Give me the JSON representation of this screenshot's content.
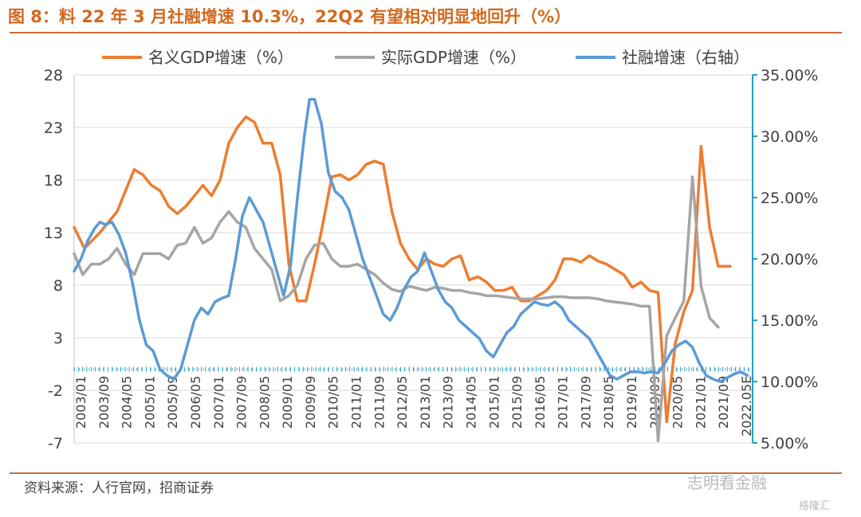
{
  "figure_title": "图 8：料 22 年 3 月社融增速 10.3%，22Q2 有望相对明显地回升（%）",
  "source": "资料来源：人行官网，招商证券",
  "watermark": "志明看金融",
  "watermark2": "格隆汇",
  "colors": {
    "nominal": "#ed7d31",
    "real": "#a5a5a5",
    "tsf": "#5b9bd5",
    "right_axis": "#1ea0c8",
    "title": "#d2691e"
  },
  "chart_data": {
    "type": "line",
    "legend": [
      "名义GDP增速（%）",
      "实际GDP增速（%）",
      "社融增速（右轴）"
    ],
    "legend_position": "top",
    "grid": true,
    "left_axis": {
      "ticks": [
        "28",
        "23",
        "18",
        "13",
        "8",
        "3",
        "-2",
        "-7"
      ],
      "ylim": [
        -7,
        28
      ]
    },
    "right_axis": {
      "ticks": [
        "35.00%",
        "30.00%",
        "25.00%",
        "20.00%",
        "15.00%",
        "10.00%",
        "5.00%"
      ],
      "ylim": [
        5,
        35
      ]
    },
    "x_ticks": [
      "2003/01",
      "2003/09",
      "2004/05",
      "2005/01",
      "2005/09",
      "2006/05",
      "2007/01",
      "2007/09",
      "2008/05",
      "2009/01",
      "2009/09",
      "2010/05",
      "2011/01",
      "2011/09",
      "2012/05",
      "2013/01",
      "2013/09",
      "2014/05",
      "2015/01",
      "2015/09",
      "2016/05",
      "2017/01",
      "2017/09",
      "2018/05",
      "2019/01",
      "2019/09",
      "2020/05",
      "2021/01",
      "2021/09",
      "2022.05E"
    ],
    "series": [
      {
        "name": "名义GDP增速（%）",
        "axis": "left",
        "color": "#ed7d31",
        "points": [
          [
            2003.0,
            13.5
          ],
          [
            2003.3,
            11.5
          ],
          [
            2003.75,
            13.0
          ],
          [
            2004.25,
            15.0
          ],
          [
            2004.5,
            17.0
          ],
          [
            2004.75,
            19.0
          ],
          [
            2005.0,
            18.5
          ],
          [
            2005.25,
            17.5
          ],
          [
            2005.5,
            17.0
          ],
          [
            2005.75,
            15.5
          ],
          [
            2006.0,
            14.8
          ],
          [
            2006.25,
            15.5
          ],
          [
            2006.5,
            16.5
          ],
          [
            2006.75,
            17.5
          ],
          [
            2007.0,
            16.5
          ],
          [
            2007.25,
            18.0
          ],
          [
            2007.5,
            21.5
          ],
          [
            2007.75,
            23.0
          ],
          [
            2008.0,
            24.0
          ],
          [
            2008.25,
            23.5
          ],
          [
            2008.5,
            21.5
          ],
          [
            2008.75,
            21.5
          ],
          [
            2009.0,
            18.5
          ],
          [
            2009.25,
            10.0
          ],
          [
            2009.5,
            6.5
          ],
          [
            2009.75,
            6.5
          ],
          [
            2010.0,
            10.0
          ],
          [
            2010.25,
            14.0
          ],
          [
            2010.5,
            18.3
          ],
          [
            2010.75,
            18.5
          ],
          [
            2011.0,
            18.0
          ],
          [
            2011.25,
            18.5
          ],
          [
            2011.5,
            19.5
          ],
          [
            2011.75,
            19.8
          ],
          [
            2012.0,
            19.5
          ],
          [
            2012.25,
            15.0
          ],
          [
            2012.5,
            12.0
          ],
          [
            2012.75,
            10.5
          ],
          [
            2013.0,
            9.5
          ],
          [
            2013.25,
            10.5
          ],
          [
            2013.5,
            10.0
          ],
          [
            2013.75,
            9.8
          ],
          [
            2014.0,
            10.5
          ],
          [
            2014.25,
            10.8
          ],
          [
            2014.5,
            8.5
          ],
          [
            2014.75,
            8.8
          ],
          [
            2015.0,
            8.3
          ],
          [
            2015.25,
            7.5
          ],
          [
            2015.5,
            7.5
          ],
          [
            2015.75,
            7.8
          ],
          [
            2016.0,
            6.5
          ],
          [
            2016.25,
            6.5
          ],
          [
            2016.5,
            7.0
          ],
          [
            2016.75,
            7.5
          ],
          [
            2017.0,
            8.5
          ],
          [
            2017.25,
            10.5
          ],
          [
            2017.5,
            10.5
          ],
          [
            2017.75,
            10.2
          ],
          [
            2018.0,
            10.8
          ],
          [
            2018.25,
            10.3
          ],
          [
            2018.5,
            10.0
          ],
          [
            2018.75,
            9.5
          ],
          [
            2019.0,
            9.0
          ],
          [
            2019.25,
            7.8
          ],
          [
            2019.5,
            8.3
          ],
          [
            2019.75,
            7.5
          ],
          [
            2020.0,
            7.3
          ],
          [
            2020.25,
            -5.0
          ],
          [
            2020.5,
            2.5
          ],
          [
            2020.75,
            5.5
          ],
          [
            2021.0,
            7.5
          ],
          [
            2021.25,
            21.2
          ],
          [
            2021.5,
            13.5
          ],
          [
            2021.75,
            9.8
          ],
          [
            2022.1,
            9.8
          ]
        ]
      },
      {
        "name": "实际GDP增速（%）",
        "axis": "left",
        "color": "#a5a5a5",
        "points": [
          [
            2003.0,
            11.0
          ],
          [
            2003.25,
            9.0
          ],
          [
            2003.5,
            10.0
          ],
          [
            2003.75,
            10.0
          ],
          [
            2004.0,
            10.5
          ],
          [
            2004.25,
            11.5
          ],
          [
            2004.5,
            10.0
          ],
          [
            2004.75,
            9.0
          ],
          [
            2005.0,
            11.0
          ],
          [
            2005.25,
            11.0
          ],
          [
            2005.5,
            11.0
          ],
          [
            2005.75,
            10.5
          ],
          [
            2006.0,
            11.8
          ],
          [
            2006.25,
            12.0
          ],
          [
            2006.5,
            13.5
          ],
          [
            2006.75,
            12.0
          ],
          [
            2007.0,
            12.5
          ],
          [
            2007.25,
            14.0
          ],
          [
            2007.5,
            15.0
          ],
          [
            2007.75,
            14.0
          ],
          [
            2008.0,
            13.5
          ],
          [
            2008.25,
            11.5
          ],
          [
            2008.5,
            10.5
          ],
          [
            2008.75,
            9.5
          ],
          [
            2009.0,
            6.5
          ],
          [
            2009.25,
            7.0
          ],
          [
            2009.5,
            8.0
          ],
          [
            2009.75,
            10.5
          ],
          [
            2010.0,
            11.8
          ],
          [
            2010.25,
            12.0
          ],
          [
            2010.5,
            10.5
          ],
          [
            2010.75,
            9.8
          ],
          [
            2011.0,
            9.8
          ],
          [
            2011.25,
            10.0
          ],
          [
            2011.5,
            9.5
          ],
          [
            2011.75,
            9.0
          ],
          [
            2012.0,
            8.2
          ],
          [
            2012.25,
            7.6
          ],
          [
            2012.5,
            7.4
          ],
          [
            2012.75,
            7.9
          ],
          [
            2013.0,
            7.7
          ],
          [
            2013.25,
            7.5
          ],
          [
            2013.5,
            7.8
          ],
          [
            2013.75,
            7.7
          ],
          [
            2014.0,
            7.5
          ],
          [
            2014.25,
            7.5
          ],
          [
            2014.5,
            7.3
          ],
          [
            2014.75,
            7.2
          ],
          [
            2015.0,
            7.0
          ],
          [
            2015.25,
            7.0
          ],
          [
            2015.5,
            6.9
          ],
          [
            2015.75,
            6.8
          ],
          [
            2016.0,
            6.7
          ],
          [
            2016.25,
            6.7
          ],
          [
            2016.5,
            6.7
          ],
          [
            2016.75,
            6.8
          ],
          [
            2017.0,
            6.9
          ],
          [
            2017.25,
            6.9
          ],
          [
            2017.5,
            6.8
          ],
          [
            2017.75,
            6.8
          ],
          [
            2018.0,
            6.8
          ],
          [
            2018.25,
            6.7
          ],
          [
            2018.5,
            6.5
          ],
          [
            2018.75,
            6.4
          ],
          [
            2019.0,
            6.3
          ],
          [
            2019.25,
            6.2
          ],
          [
            2019.5,
            6.0
          ],
          [
            2019.75,
            6.0
          ],
          [
            2020.0,
            -6.8
          ],
          [
            2020.25,
            3.2
          ],
          [
            2020.5,
            4.9
          ],
          [
            2020.75,
            6.5
          ],
          [
            2021.0,
            18.3
          ],
          [
            2021.25,
            7.9
          ],
          [
            2021.5,
            4.9
          ],
          [
            2021.75,
            4.0
          ]
        ]
      },
      {
        "name": "社融增速（右轴）",
        "axis": "right",
        "color": "#5b9bd5",
        "points": [
          [
            2003.0,
            19.0
          ],
          [
            2003.2,
            20.0
          ],
          [
            2003.4,
            21.5
          ],
          [
            2003.6,
            22.5
          ],
          [
            2003.75,
            23.0
          ],
          [
            2003.9,
            22.8
          ],
          [
            2004.1,
            23.0
          ],
          [
            2004.3,
            22.0
          ],
          [
            2004.5,
            20.5
          ],
          [
            2004.7,
            18.0
          ],
          [
            2004.9,
            15.0
          ],
          [
            2005.1,
            13.0
          ],
          [
            2005.3,
            12.5
          ],
          [
            2005.5,
            11.0
          ],
          [
            2005.7,
            10.5
          ],
          [
            2005.9,
            10.2
          ],
          [
            2006.1,
            11.0
          ],
          [
            2006.3,
            13.0
          ],
          [
            2006.5,
            15.0
          ],
          [
            2006.7,
            16.0
          ],
          [
            2006.9,
            15.5
          ],
          [
            2007.1,
            16.5
          ],
          [
            2007.3,
            16.8
          ],
          [
            2007.5,
            17.0
          ],
          [
            2007.7,
            20.0
          ],
          [
            2007.9,
            23.5
          ],
          [
            2008.1,
            25.0
          ],
          [
            2008.3,
            24.0
          ],
          [
            2008.5,
            23.0
          ],
          [
            2008.7,
            21.0
          ],
          [
            2008.9,
            19.0
          ],
          [
            2009.1,
            17.0
          ],
          [
            2009.3,
            19.5
          ],
          [
            2009.5,
            25.0
          ],
          [
            2009.7,
            30.0
          ],
          [
            2009.85,
            33.0
          ],
          [
            2010.0,
            33.0
          ],
          [
            2010.2,
            31.0
          ],
          [
            2010.4,
            27.0
          ],
          [
            2010.6,
            25.5
          ],
          [
            2010.8,
            25.0
          ],
          [
            2011.0,
            24.0
          ],
          [
            2011.2,
            22.0
          ],
          [
            2011.4,
            20.0
          ],
          [
            2011.6,
            18.5
          ],
          [
            2011.8,
            17.0
          ],
          [
            2012.0,
            15.5
          ],
          [
            2012.2,
            15.0
          ],
          [
            2012.4,
            16.0
          ],
          [
            2012.6,
            17.5
          ],
          [
            2012.8,
            18.5
          ],
          [
            2013.0,
            19.0
          ],
          [
            2013.2,
            20.5
          ],
          [
            2013.4,
            19.0
          ],
          [
            2013.6,
            17.5
          ],
          [
            2013.8,
            16.5
          ],
          [
            2014.0,
            16.0
          ],
          [
            2014.2,
            15.0
          ],
          [
            2014.4,
            14.5
          ],
          [
            2014.6,
            14.0
          ],
          [
            2014.8,
            13.5
          ],
          [
            2015.0,
            12.5
          ],
          [
            2015.2,
            12.0
          ],
          [
            2015.4,
            13.0
          ],
          [
            2015.6,
            14.0
          ],
          [
            2015.8,
            14.5
          ],
          [
            2016.0,
            15.5
          ],
          [
            2016.2,
            16.0
          ],
          [
            2016.4,
            16.5
          ],
          [
            2016.6,
            16.3
          ],
          [
            2016.8,
            16.2
          ],
          [
            2017.0,
            16.5
          ],
          [
            2017.2,
            16.0
          ],
          [
            2017.4,
            15.0
          ],
          [
            2017.6,
            14.5
          ],
          [
            2017.8,
            14.0
          ],
          [
            2018.0,
            13.5
          ],
          [
            2018.2,
            12.5
          ],
          [
            2018.4,
            11.5
          ],
          [
            2018.6,
            10.5
          ],
          [
            2018.8,
            10.2
          ],
          [
            2019.0,
            10.5
          ],
          [
            2019.2,
            10.8
          ],
          [
            2019.4,
            10.8
          ],
          [
            2019.6,
            10.7
          ],
          [
            2019.8,
            10.8
          ],
          [
            2020.0,
            10.7
          ],
          [
            2020.2,
            11.5
          ],
          [
            2020.4,
            12.5
          ],
          [
            2020.6,
            13.0
          ],
          [
            2020.8,
            13.3
          ],
          [
            2021.0,
            12.8
          ],
          [
            2021.2,
            11.5
          ],
          [
            2021.4,
            10.5
          ],
          [
            2021.6,
            10.2
          ],
          [
            2021.8,
            10.0
          ],
          [
            2022.0,
            10.3
          ],
          [
            2022.2,
            10.6
          ],
          [
            2022.4,
            10.8
          ],
          [
            2022.6,
            10.5
          ]
        ]
      }
    ]
  }
}
